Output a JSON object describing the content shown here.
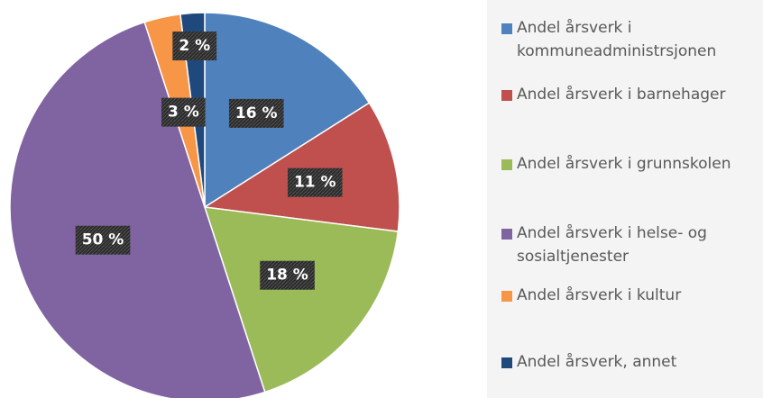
{
  "chart_data": {
    "type": "pie",
    "categories": [
      "Andel årsverk i kommuneadministrsjonen",
      "Andel årsverk i barnehager",
      "Andel årsverk i grunnskolen",
      "Andel årsverk i helse- og sosialtjenester",
      "Andel årsverk i kultur",
      "Andel årsverk, annet"
    ],
    "values": [
      16,
      11,
      18,
      50,
      3,
      2
    ],
    "value_labels": [
      "16 %",
      "11 %",
      "18 %",
      "50 %",
      "3 %",
      "2 %"
    ],
    "colors": [
      "#4f81bd",
      "#c0504d",
      "#9bbb59",
      "#8064a2",
      "#f79646",
      "#1f497d"
    ]
  }
}
